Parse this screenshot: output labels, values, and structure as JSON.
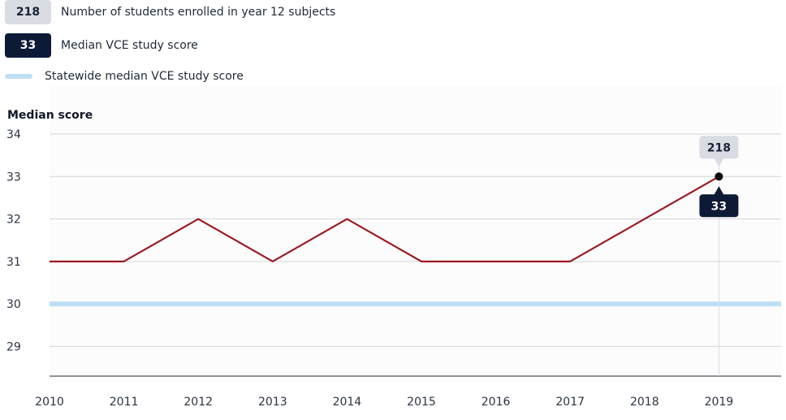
{
  "legend": {
    "students_badge": "218",
    "students_label": "Number of students enrolled in year 12 subjects",
    "median_badge": "33",
    "median_label": "Median VCE study score",
    "statewide_label": "Statewide median VCE study score"
  },
  "colors": {
    "series_line": "#9b1b1f",
    "statewide_line": "#bfdff5",
    "dark_badge": "#0c1a36",
    "light_badge": "#d9dce3"
  },
  "chart_data": {
    "type": "line",
    "ylabel": "Median score",
    "xlabel": "",
    "x": [
      "2010",
      "2011",
      "2012",
      "2013",
      "2014",
      "2015",
      "2016",
      "2017",
      "2018",
      "2019"
    ],
    "series": [
      {
        "name": "Median VCE study score",
        "values": [
          31,
          31,
          32,
          31,
          32,
          31,
          31,
          31,
          32,
          33
        ]
      }
    ],
    "statewide_median": 30,
    "ylim": [
      28.3,
      34
    ],
    "yticks": [
      29,
      30,
      31,
      32,
      33,
      34
    ],
    "grid": true,
    "highlight": {
      "x": "2019",
      "students": "218",
      "median": "33"
    }
  }
}
